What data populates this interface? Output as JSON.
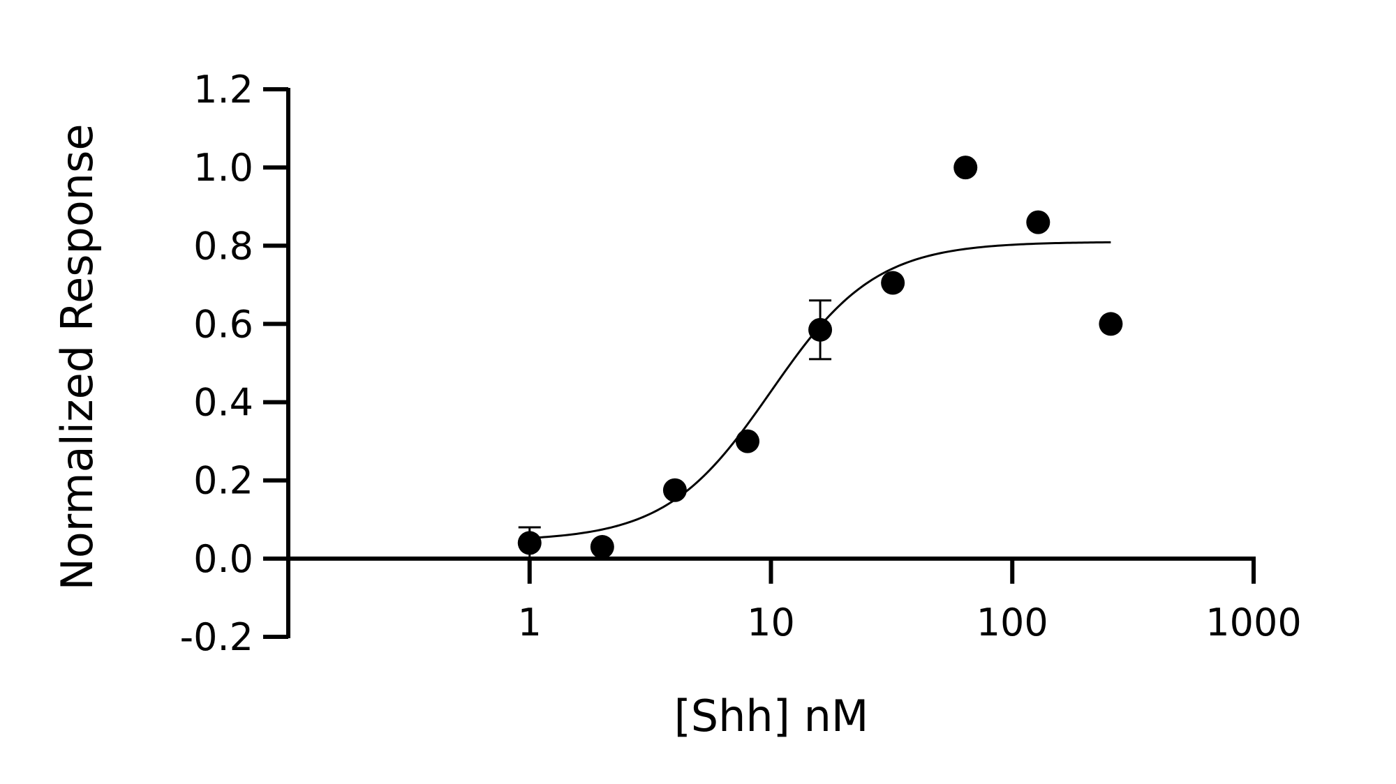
{
  "chart_data": {
    "type": "scatter",
    "title": "",
    "xlabel": "[Shh] nM",
    "ylabel": "Normalized Response",
    "xscale": "log",
    "xlim": [
      0.1,
      1000
    ],
    "ylim": [
      -0.2,
      1.2
    ],
    "xticks": [
      {
        "value": 1,
        "label": "1"
      },
      {
        "value": 10,
        "label": "10"
      },
      {
        "value": 100,
        "label": "100"
      },
      {
        "value": 1000,
        "label": "1000"
      }
    ],
    "yticks": [
      {
        "value": 1.2,
        "label": "1.2"
      },
      {
        "value": 1.0,
        "label": "1.0"
      },
      {
        "value": 0.8,
        "label": "0.8"
      },
      {
        "value": 0.6,
        "label": "0.6"
      },
      {
        "value": 0.4,
        "label": "0.4"
      },
      {
        "value": 0.2,
        "label": "0.2"
      },
      {
        "value": 0.0,
        "label": "0.0"
      },
      {
        "value": -0.2,
        "label": "-0.2"
      }
    ],
    "points": [
      {
        "x": 1,
        "y": 0.04,
        "err": 0.04
      },
      {
        "x": 2,
        "y": 0.03
      },
      {
        "x": 4,
        "y": 0.175
      },
      {
        "x": 8,
        "y": 0.3
      },
      {
        "x": 16,
        "y": 0.585,
        "err": 0.075
      },
      {
        "x": 32,
        "y": 0.705
      },
      {
        "x": 64,
        "y": 1.0
      },
      {
        "x": 128,
        "y": 0.86
      },
      {
        "x": 256,
        "y": 0.6
      }
    ],
    "fit": {
      "model": "sigmoid",
      "bottom": 0.045,
      "top": 0.81,
      "ec50": 10,
      "hill": 2.0,
      "xrange": [
        1,
        256
      ]
    },
    "grid": false,
    "legend": "none",
    "color": "#000000"
  }
}
